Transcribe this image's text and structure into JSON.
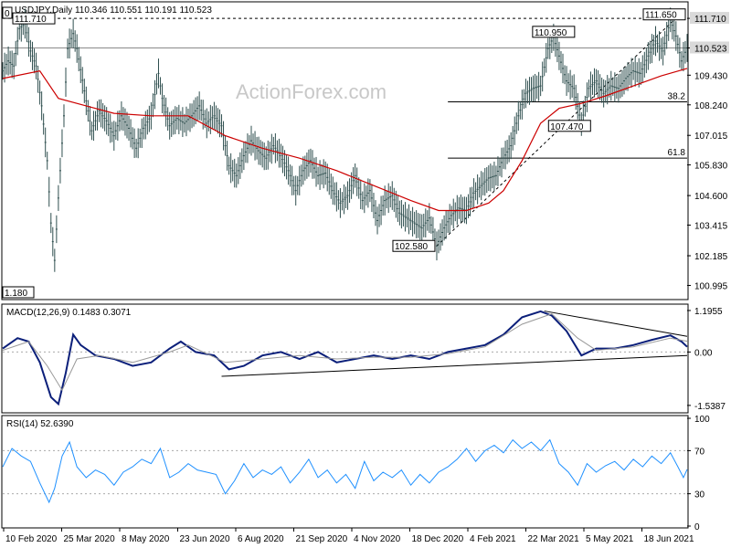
{
  "chart_data": [
    {
      "type": "candlestick",
      "title": "USDJPY,Daily",
      "ohlc": {
        "open": "110.346",
        "high": "110.551",
        "low": "110.191",
        "close": "110.523"
      },
      "watermark": "ActionForex.com",
      "ylim": [
        100.5,
        112.3
      ],
      "y_ticks": [
        "111.710",
        "110.523",
        "109.430",
        "108.240",
        "107.015",
        "105.830",
        "104.600",
        "103.415",
        "102.185",
        "100.995"
      ],
      "x_ticks": [
        "10 Feb 2020",
        "25 Mar 2020",
        "8 May 2020",
        "23 Jun 2020",
        "6 Aug 2020",
        "21 Sep 2020",
        "4 Nov 2020",
        "18 Dec 2020",
        "4 Feb 2021",
        "22 Mar 2021",
        "5 May 2021",
        "18 Jun 2021"
      ],
      "price_series": [
        {
          "t": 0,
          "v": 109.6
        },
        {
          "t": 3,
          "v": 110.0
        },
        {
          "t": 6,
          "v": 109.8
        },
        {
          "t": 9,
          "v": 111.3
        },
        {
          "t": 12,
          "v": 111.5
        },
        {
          "t": 15,
          "v": 110.4
        },
        {
          "t": 18,
          "v": 109.8
        },
        {
          "t": 21,
          "v": 108.2
        },
        {
          "t": 24,
          "v": 106.0
        },
        {
          "t": 26,
          "v": 103.5
        },
        {
          "t": 28,
          "v": 102.0
        },
        {
          "t": 30,
          "v": 104.5
        },
        {
          "t": 33,
          "v": 107.8
        },
        {
          "t": 35,
          "v": 110.5
        },
        {
          "t": 38,
          "v": 111.1
        },
        {
          "t": 40,
          "v": 110.5
        },
        {
          "t": 44,
          "v": 108.8
        },
        {
          "t": 48,
          "v": 107.2
        },
        {
          "t": 52,
          "v": 108.0
        },
        {
          "t": 56,
          "v": 107.6
        },
        {
          "t": 60,
          "v": 107.0
        },
        {
          "t": 64,
          "v": 107.8
        },
        {
          "t": 68,
          "v": 107.3
        },
        {
          "t": 72,
          "v": 106.5
        },
        {
          "t": 76,
          "v": 107.3
        },
        {
          "t": 80,
          "v": 107.8
        },
        {
          "t": 84,
          "v": 109.5
        },
        {
          "t": 86,
          "v": 108.5
        },
        {
          "t": 90,
          "v": 107.4
        },
        {
          "t": 94,
          "v": 107.7
        },
        {
          "t": 98,
          "v": 107.5
        },
        {
          "t": 102,
          "v": 107.8
        },
        {
          "t": 106,
          "v": 108.2
        },
        {
          "t": 110,
          "v": 107.5
        },
        {
          "t": 114,
          "v": 107.8
        },
        {
          "t": 118,
          "v": 107.4
        },
        {
          "t": 122,
          "v": 105.8
        },
        {
          "t": 126,
          "v": 105.4
        },
        {
          "t": 130,
          "v": 106.2
        },
        {
          "t": 134,
          "v": 106.8
        },
        {
          "t": 138,
          "v": 106.4
        },
        {
          "t": 142,
          "v": 106.1
        },
        {
          "t": 146,
          "v": 106.6
        },
        {
          "t": 150,
          "v": 106.2
        },
        {
          "t": 154,
          "v": 105.6
        },
        {
          "t": 158,
          "v": 104.8
        },
        {
          "t": 162,
          "v": 105.6
        },
        {
          "t": 166,
          "v": 106.0
        },
        {
          "t": 170,
          "v": 105.4
        },
        {
          "t": 174,
          "v": 105.5
        },
        {
          "t": 178,
          "v": 104.8
        },
        {
          "t": 182,
          "v": 104.3
        },
        {
          "t": 186,
          "v": 104.6
        },
        {
          "t": 190,
          "v": 105.4
        },
        {
          "t": 194,
          "v": 104.4
        },
        {
          "t": 198,
          "v": 104.8
        },
        {
          "t": 202,
          "v": 103.6
        },
        {
          "t": 206,
          "v": 104.4
        },
        {
          "t": 210,
          "v": 104.6
        },
        {
          "t": 214,
          "v": 103.9
        },
        {
          "t": 218,
          "v": 103.7
        },
        {
          "t": 222,
          "v": 103.5
        },
        {
          "t": 226,
          "v": 103.3
        },
        {
          "t": 230,
          "v": 103.7
        },
        {
          "t": 234,
          "v": 102.58
        },
        {
          "t": 238,
          "v": 103.3
        },
        {
          "t": 242,
          "v": 103.8
        },
        {
          "t": 246,
          "v": 104.1
        },
        {
          "t": 250,
          "v": 104.0
        },
        {
          "t": 254,
          "v": 104.7
        },
        {
          "t": 258,
          "v": 105.0
        },
        {
          "t": 262,
          "v": 105.3
        },
        {
          "t": 266,
          "v": 105.4
        },
        {
          "t": 270,
          "v": 106.1
        },
        {
          "t": 274,
          "v": 106.6
        },
        {
          "t": 278,
          "v": 107.8
        },
        {
          "t": 282,
          "v": 108.7
        },
        {
          "t": 286,
          "v": 108.9
        },
        {
          "t": 290,
          "v": 109.0
        },
        {
          "t": 294,
          "v": 110.5
        },
        {
          "t": 297,
          "v": 110.95
        },
        {
          "t": 300,
          "v": 110.2
        },
        {
          "t": 304,
          "v": 109.2
        },
        {
          "t": 308,
          "v": 108.9
        },
        {
          "t": 312,
          "v": 107.47
        },
        {
          "t": 316,
          "v": 108.9
        },
        {
          "t": 320,
          "v": 109.2
        },
        {
          "t": 324,
          "v": 108.7
        },
        {
          "t": 328,
          "v": 109.0
        },
        {
          "t": 332,
          "v": 108.9
        },
        {
          "t": 336,
          "v": 109.3
        },
        {
          "t": 340,
          "v": 109.6
        },
        {
          "t": 344,
          "v": 109.5
        },
        {
          "t": 348,
          "v": 110.2
        },
        {
          "t": 352,
          "v": 110.8
        },
        {
          "t": 356,
          "v": 110.4
        },
        {
          "t": 360,
          "v": 111.65
        },
        {
          "t": 363,
          "v": 111.0
        },
        {
          "t": 366,
          "v": 110.0
        },
        {
          "t": 369,
          "v": 110.523
        }
      ],
      "ma_series": [
        {
          "t": 0,
          "v": 109.3
        },
        {
          "t": 20,
          "v": 109.6
        },
        {
          "t": 30,
          "v": 108.5
        },
        {
          "t": 45,
          "v": 108.2
        },
        {
          "t": 60,
          "v": 107.9
        },
        {
          "t": 80,
          "v": 107.8
        },
        {
          "t": 100,
          "v": 107.8
        },
        {
          "t": 120,
          "v": 107.0
        },
        {
          "t": 140,
          "v": 106.5
        },
        {
          "t": 160,
          "v": 106.1
        },
        {
          "t": 180,
          "v": 105.6
        },
        {
          "t": 200,
          "v": 105.0
        },
        {
          "t": 220,
          "v": 104.4
        },
        {
          "t": 235,
          "v": 104.0
        },
        {
          "t": 250,
          "v": 104.0
        },
        {
          "t": 262,
          "v": 104.3
        },
        {
          "t": 270,
          "v": 104.8
        },
        {
          "t": 280,
          "v": 106.0
        },
        {
          "t": 290,
          "v": 107.5
        },
        {
          "t": 300,
          "v": 108.1
        },
        {
          "t": 312,
          "v": 108.3
        },
        {
          "t": 325,
          "v": 108.6
        },
        {
          "t": 340,
          "v": 109.0
        },
        {
          "t": 355,
          "v": 109.4
        },
        {
          "t": 369,
          "v": 109.7
        }
      ],
      "horizontal_levels": [
        {
          "value": 111.71,
          "style": "dashed",
          "label": "111.710"
        },
        {
          "value": 110.523,
          "style": "solid-gray"
        },
        {
          "value": 108.36,
          "style": "solid",
          "label": "38.2",
          "from_t": 240
        },
        {
          "value": 106.1,
          "style": "solid",
          "label": "61.8",
          "from_t": 240
        }
      ],
      "trendline": {
        "from": {
          "t": 234,
          "v": 102.58
        },
        "to": {
          "t": 362,
          "v": 111.65
        },
        "style": "dashed"
      },
      "annotations": [
        {
          "text": "111.710",
          "t": 14,
          "v": 111.71
        },
        {
          "text": "110.950",
          "t": 297,
          "v": 110.95
        },
        {
          "text": "111.650",
          "t": 360,
          "v": 111.65
        },
        {
          "text": "107.470",
          "t": 312,
          "v": 107.47
        },
        {
          "text": "102.580",
          "t": 234,
          "v": 102.58
        },
        {
          "text": "1.180",
          "t": 0,
          "v": 101.18
        },
        {
          "text": "0",
          "t": 0,
          "v": 112.25
        }
      ],
      "last_price_label": "110.523",
      "top_level_label": "111.710"
    },
    {
      "type": "line",
      "title": "MACD(12,26,9) 0.1483 0.3071",
      "ylim": [
        -1.7,
        1.3
      ],
      "y_ticks": [
        "1.1955",
        "0.00",
        "-1.5387"
      ],
      "macd_series": [
        {
          "t": 0,
          "v": 0.1
        },
        {
          "t": 8,
          "v": 0.4
        },
        {
          "t": 14,
          "v": 0.3
        },
        {
          "t": 20,
          "v": -0.3
        },
        {
          "t": 26,
          "v": -1.3
        },
        {
          "t": 30,
          "v": -1.5
        },
        {
          "t": 34,
          "v": -0.6
        },
        {
          "t": 38,
          "v": 0.5
        },
        {
          "t": 42,
          "v": 0.2
        },
        {
          "t": 50,
          "v": -0.1
        },
        {
          "t": 60,
          "v": -0.2
        },
        {
          "t": 70,
          "v": -0.4
        },
        {
          "t": 80,
          "v": -0.3
        },
        {
          "t": 90,
          "v": 0.1
        },
        {
          "t": 96,
          "v": 0.3
        },
        {
          "t": 104,
          "v": 0.0
        },
        {
          "t": 114,
          "v": -0.1
        },
        {
          "t": 122,
          "v": -0.5
        },
        {
          "t": 130,
          "v": -0.4
        },
        {
          "t": 140,
          "v": -0.1
        },
        {
          "t": 150,
          "v": 0.0
        },
        {
          "t": 160,
          "v": -0.2
        },
        {
          "t": 170,
          "v": 0.0
        },
        {
          "t": 180,
          "v": -0.3
        },
        {
          "t": 190,
          "v": -0.2
        },
        {
          "t": 200,
          "v": -0.1
        },
        {
          "t": 210,
          "v": -0.2
        },
        {
          "t": 220,
          "v": -0.1
        },
        {
          "t": 230,
          "v": -0.2
        },
        {
          "t": 240,
          "v": 0.0
        },
        {
          "t": 250,
          "v": 0.1
        },
        {
          "t": 260,
          "v": 0.2
        },
        {
          "t": 270,
          "v": 0.5
        },
        {
          "t": 280,
          "v": 1.0
        },
        {
          "t": 290,
          "v": 1.17
        },
        {
          "t": 296,
          "v": 1.05
        },
        {
          "t": 304,
          "v": 0.6
        },
        {
          "t": 312,
          "v": -0.1
        },
        {
          "t": 320,
          "v": 0.1
        },
        {
          "t": 330,
          "v": 0.1
        },
        {
          "t": 340,
          "v": 0.2
        },
        {
          "t": 350,
          "v": 0.35
        },
        {
          "t": 360,
          "v": 0.48
        },
        {
          "t": 366,
          "v": 0.3
        },
        {
          "t": 369,
          "v": 0.15
        }
      ],
      "signal_series": [
        {
          "t": 0,
          "v": 0.05
        },
        {
          "t": 14,
          "v": 0.3
        },
        {
          "t": 24,
          "v": -0.4
        },
        {
          "t": 32,
          "v": -1.1
        },
        {
          "t": 40,
          "v": -0.2
        },
        {
          "t": 52,
          "v": -0.1
        },
        {
          "t": 70,
          "v": -0.3
        },
        {
          "t": 90,
          "v": 0.0
        },
        {
          "t": 100,
          "v": 0.2
        },
        {
          "t": 120,
          "v": -0.3
        },
        {
          "t": 140,
          "v": -0.2
        },
        {
          "t": 160,
          "v": -0.1
        },
        {
          "t": 180,
          "v": -0.2
        },
        {
          "t": 200,
          "v": -0.15
        },
        {
          "t": 220,
          "v": -0.15
        },
        {
          "t": 240,
          "v": -0.05
        },
        {
          "t": 260,
          "v": 0.15
        },
        {
          "t": 280,
          "v": 0.8
        },
        {
          "t": 296,
          "v": 1.1
        },
        {
          "t": 310,
          "v": 0.4
        },
        {
          "t": 320,
          "v": 0.05
        },
        {
          "t": 340,
          "v": 0.15
        },
        {
          "t": 360,
          "v": 0.4
        },
        {
          "t": 369,
          "v": 0.31
        }
      ],
      "trendlines": [
        {
          "from": {
            "t": 292,
            "v": 1.18
          },
          "to": {
            "t": 369,
            "v": 0.45
          }
        },
        {
          "from": {
            "t": 118,
            "v": -0.7
          },
          "to": {
            "t": 369,
            "v": -0.1
          }
        }
      ]
    },
    {
      "type": "line",
      "title": "RSI(14) 52.6390",
      "ylim": [
        0,
        100
      ],
      "y_ticks": [
        "100",
        "70",
        "30",
        "0"
      ],
      "levels": [
        70,
        30
      ],
      "rsi_series": [
        {
          "t": 0,
          "v": 55
        },
        {
          "t": 5,
          "v": 72
        },
        {
          "t": 10,
          "v": 65
        },
        {
          "t": 15,
          "v": 60
        },
        {
          "t": 20,
          "v": 40
        },
        {
          "t": 25,
          "v": 22
        },
        {
          "t": 28,
          "v": 35
        },
        {
          "t": 32,
          "v": 65
        },
        {
          "t": 36,
          "v": 78
        },
        {
          "t": 40,
          "v": 55
        },
        {
          "t": 45,
          "v": 45
        },
        {
          "t": 50,
          "v": 52
        },
        {
          "t": 55,
          "v": 48
        },
        {
          "t": 60,
          "v": 38
        },
        {
          "t": 65,
          "v": 50
        },
        {
          "t": 70,
          "v": 55
        },
        {
          "t": 75,
          "v": 62
        },
        {
          "t": 80,
          "v": 58
        },
        {
          "t": 85,
          "v": 72
        },
        {
          "t": 90,
          "v": 45
        },
        {
          "t": 95,
          "v": 50
        },
        {
          "t": 100,
          "v": 58
        },
        {
          "t": 105,
          "v": 52
        },
        {
          "t": 110,
          "v": 50
        },
        {
          "t": 115,
          "v": 48
        },
        {
          "t": 120,
          "v": 30
        },
        {
          "t": 125,
          "v": 42
        },
        {
          "t": 130,
          "v": 58
        },
        {
          "t": 135,
          "v": 45
        },
        {
          "t": 140,
          "v": 52
        },
        {
          "t": 145,
          "v": 48
        },
        {
          "t": 150,
          "v": 55
        },
        {
          "t": 155,
          "v": 40
        },
        {
          "t": 160,
          "v": 50
        },
        {
          "t": 165,
          "v": 62
        },
        {
          "t": 170,
          "v": 45
        },
        {
          "t": 175,
          "v": 52
        },
        {
          "t": 180,
          "v": 40
        },
        {
          "t": 185,
          "v": 48
        },
        {
          "t": 190,
          "v": 35
        },
        {
          "t": 195,
          "v": 60
        },
        {
          "t": 200,
          "v": 42
        },
        {
          "t": 205,
          "v": 50
        },
        {
          "t": 210,
          "v": 45
        },
        {
          "t": 215,
          "v": 52
        },
        {
          "t": 220,
          "v": 38
        },
        {
          "t": 225,
          "v": 48
        },
        {
          "t": 230,
          "v": 40
        },
        {
          "t": 235,
          "v": 50
        },
        {
          "t": 240,
          "v": 55
        },
        {
          "t": 245,
          "v": 62
        },
        {
          "t": 250,
          "v": 72
        },
        {
          "t": 255,
          "v": 60
        },
        {
          "t": 260,
          "v": 70
        },
        {
          "t": 265,
          "v": 75
        },
        {
          "t": 270,
          "v": 68
        },
        {
          "t": 275,
          "v": 80
        },
        {
          "t": 280,
          "v": 72
        },
        {
          "t": 285,
          "v": 78
        },
        {
          "t": 290,
          "v": 70
        },
        {
          "t": 295,
          "v": 80
        },
        {
          "t": 300,
          "v": 58
        },
        {
          "t": 305,
          "v": 50
        },
        {
          "t": 310,
          "v": 38
        },
        {
          "t": 315,
          "v": 58
        },
        {
          "t": 320,
          "v": 50
        },
        {
          "t": 325,
          "v": 56
        },
        {
          "t": 330,
          "v": 60
        },
        {
          "t": 335,
          "v": 52
        },
        {
          "t": 340,
          "v": 62
        },
        {
          "t": 345,
          "v": 55
        },
        {
          "t": 350,
          "v": 65
        },
        {
          "t": 355,
          "v": 58
        },
        {
          "t": 360,
          "v": 68
        },
        {
          "t": 364,
          "v": 55
        },
        {
          "t": 367,
          "v": 45
        },
        {
          "t": 369,
          "v": 52.6
        }
      ]
    }
  ]
}
